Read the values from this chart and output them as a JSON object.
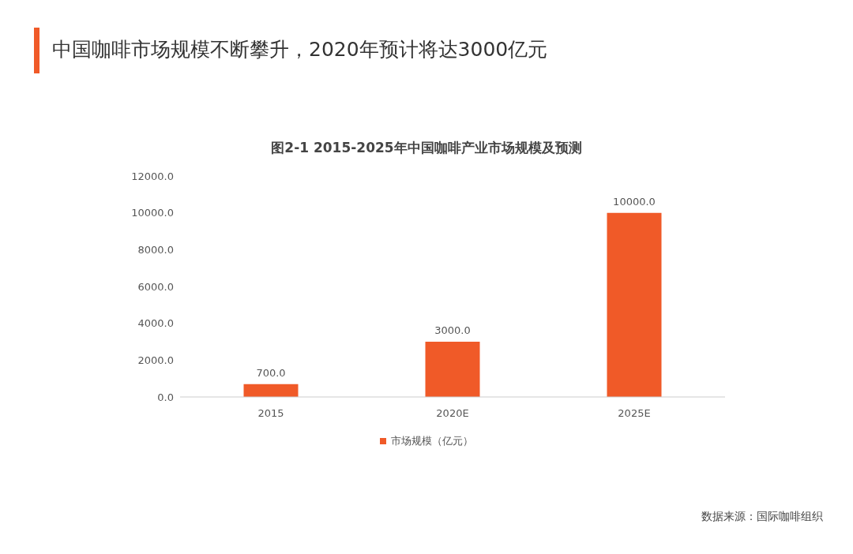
{
  "chart_data": {
    "type": "bar",
    "title": "中国咖啡市场规模不断攀升，2020年预计将达3000亿元",
    "subtitle": "图2-1 2015-2025年中国咖啡产业市场规模及预测",
    "categories": [
      "2015",
      "2020E",
      "2025E"
    ],
    "series": [
      {
        "name": "市场规模（亿元）",
        "color": "#f05a28",
        "values": [
          700,
          3000,
          10000
        ],
        "value_labels": [
          "700.0",
          "3000.0",
          "10000.0"
        ]
      }
    ],
    "ylim": [
      0,
      12000
    ],
    "yticks": [
      {
        "value": 0,
        "label": "0.0"
      },
      {
        "value": 2000,
        "label": "2000.0"
      },
      {
        "value": 4000,
        "label": "4000.0"
      },
      {
        "value": 6000,
        "label": "6000.0"
      },
      {
        "value": 8000,
        "label": "8000.0"
      },
      {
        "value": 10000,
        "label": "10000.0"
      },
      {
        "value": 12000,
        "label": "12000.0"
      }
    ],
    "grid": false,
    "legend": "bottom",
    "annotations": [
      "数据来源：国际咖啡组织"
    ]
  }
}
